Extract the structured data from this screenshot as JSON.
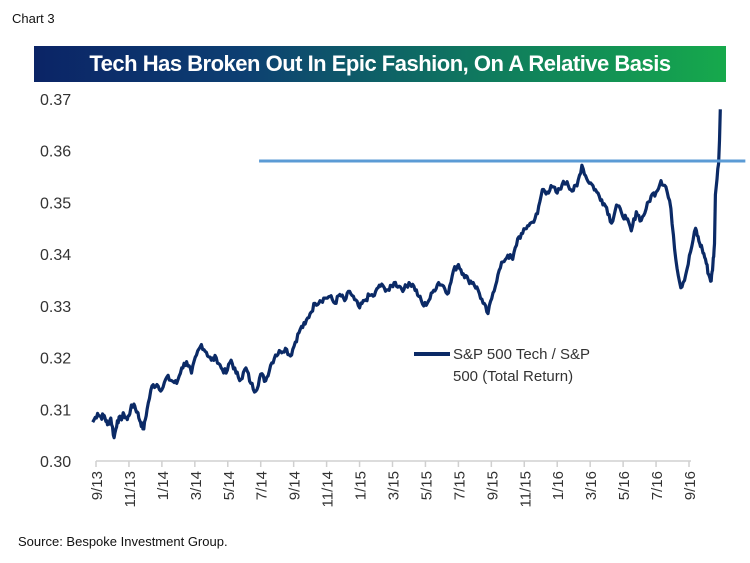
{
  "header": {
    "chart_label": "Chart 3"
  },
  "footer": {
    "source": "Source: Bespoke Investment Group."
  },
  "colors": {
    "series": "#0b2a66",
    "resistance": "#5b9bd5",
    "banner_left": "#0b2466",
    "banner_right": "#16a94c",
    "axis": "#d0d0d0"
  },
  "chart_data": {
    "type": "line",
    "title": "Tech Has Broken Out In Epic Fashion, On A Relative Basis",
    "xlabel": "",
    "ylabel": "",
    "ylim": [
      0.3,
      0.37
    ],
    "yticks": [
      "0.30",
      "0.31",
      "0.32",
      "0.33",
      "0.34",
      "0.35",
      "0.36",
      "0.37"
    ],
    "xticks": [
      "9/13",
      "11/13",
      "1/14",
      "3/14",
      "5/14",
      "7/14",
      "9/14",
      "11/14",
      "1/15",
      "3/15",
      "5/15",
      "7/15",
      "9/15",
      "11/15",
      "1/16",
      "3/16",
      "5/16",
      "7/16",
      "9/16"
    ],
    "x_unit": "months since 9/13",
    "xlim": [
      0,
      36
    ],
    "grid": false,
    "legend": {
      "position": "center-right",
      "entries": [
        "S&P 500 Tech / S&P 500 (Total Return)"
      ],
      "lines": [
        "S&P 500 Tech / S&P",
        "500 (Total Return)"
      ]
    },
    "annotations": [
      {
        "type": "horizontal-line",
        "label": "resistance",
        "value": 0.358,
        "x_start": 9.9,
        "x_end": 37.6
      }
    ],
    "series": [
      {
        "name": "S&P 500 Tech / S&P 500 (Total Return)",
        "x": [
          -0.2,
          0.1,
          0.3,
          0.5,
          0.7,
          0.9,
          1.1,
          1.3,
          1.5,
          1.7,
          1.9,
          2.1,
          2.3,
          2.5,
          2.7,
          2.9,
          3.1,
          3.4,
          3.7,
          4.0,
          4.3,
          4.6,
          4.9,
          5.2,
          5.5,
          5.8,
          6.1,
          6.4,
          6.7,
          7.0,
          7.3,
          7.6,
          7.9,
          8.2,
          8.5,
          8.8,
          9.1,
          9.4,
          9.7,
          10.0,
          10.3,
          10.6,
          10.9,
          11.2,
          11.5,
          11.8,
          12.1,
          12.4,
          12.7,
          13.0,
          13.3,
          13.6,
          13.9,
          14.2,
          14.5,
          14.8,
          15.1,
          15.4,
          15.7,
          16.0,
          16.3,
          16.6,
          16.9,
          17.2,
          17.5,
          17.8,
          18.1,
          18.4,
          18.7,
          19.0,
          19.3,
          19.6,
          19.9,
          20.2,
          20.5,
          20.8,
          21.1,
          21.4,
          21.7,
          22.0,
          22.3,
          22.6,
          22.9,
          23.2,
          23.5,
          23.8,
          24.1,
          24.4,
          24.7,
          25.0,
          25.3,
          25.6,
          25.9,
          26.2,
          26.5,
          26.8,
          27.1,
          27.4,
          27.7,
          28.0,
          28.3,
          28.6,
          28.9,
          29.2,
          29.5,
          29.8,
          30.1,
          30.4,
          30.7,
          31.0,
          31.3,
          31.6,
          31.9,
          32.2,
          32.5,
          32.8,
          33.1,
          33.4,
          33.7,
          34.0,
          34.3,
          34.6,
          34.8,
          35.0,
          35.2,
          35.4,
          35.6
        ],
        "values": [
          0.3075,
          0.3092,
          0.3085,
          0.3088,
          0.307,
          0.3083,
          0.3045,
          0.3078,
          0.3082,
          0.309,
          0.308,
          0.31,
          0.311,
          0.3095,
          0.3075,
          0.3062,
          0.31,
          0.3145,
          0.3148,
          0.3138,
          0.3162,
          0.3155,
          0.315,
          0.318,
          0.3192,
          0.317,
          0.3205,
          0.3225,
          0.321,
          0.3195,
          0.32,
          0.318,
          0.317,
          0.3195,
          0.317,
          0.3158,
          0.318,
          0.315,
          0.3135,
          0.3168,
          0.3155,
          0.3185,
          0.3205,
          0.3212,
          0.3218,
          0.3203,
          0.323,
          0.3255,
          0.3265,
          0.3285,
          0.3305,
          0.331,
          0.3315,
          0.3318,
          0.3305,
          0.3322,
          0.331,
          0.3328,
          0.3312,
          0.3296,
          0.331,
          0.332,
          0.332,
          0.334,
          0.3335,
          0.333,
          0.3345,
          0.3338,
          0.3332,
          0.3345,
          0.3338,
          0.3318,
          0.33,
          0.331,
          0.333,
          0.3345,
          0.3338,
          0.3325,
          0.3368,
          0.338,
          0.3362,
          0.335,
          0.3345,
          0.333,
          0.3305,
          0.3285,
          0.3325,
          0.336,
          0.3385,
          0.3398,
          0.339,
          0.3378,
          0.3345,
          0.334,
          0.3332,
          0.332,
          0.331,
          0.333,
          0.335,
          0.337,
          0.3395,
          0.3385,
          0.3375,
          0.3398,
          0.3408,
          0.3402,
          0.3388,
          0.336,
          0.3358,
          0.334,
          0.332,
          0.3302,
          0.3335,
          0.3392,
          0.338,
          0.337,
          0.336,
          0.334,
          0.3328,
          0.3308,
          0.337,
          0.3385,
          0.341,
          0.343,
          0.3445,
          0.3455,
          0.346
        ]
      },
      {
        "name": "S&P 500 Tech / S&P 500 (Total Return) — late period",
        "x": [
          25.6,
          25.9,
          26.2,
          26.5,
          26.8,
          27.1,
          27.4,
          27.7,
          28.0,
          28.3,
          28.6,
          28.9,
          29.2,
          29.5,
          29.8,
          30.1,
          30.4,
          30.7,
          31.0,
          31.3,
          31.6,
          31.9,
          32.2,
          32.5,
          32.8,
          33.1,
          33.4,
          33.7,
          34.0,
          34.3,
          34.6,
          34.9,
          35.2,
          35.5,
          35.8,
          36.1,
          36.4,
          36.6,
          36.8,
          37.0,
          37.2,
          37.35,
          37.45,
          37.55
        ],
        "values": [
          0.343,
          0.344,
          0.3455,
          0.3462,
          0.3478,
          0.3525,
          0.352,
          0.353,
          0.3518,
          0.3535,
          0.354,
          0.3522,
          0.3532,
          0.3572,
          0.3545,
          0.3535,
          0.352,
          0.3505,
          0.349,
          0.346,
          0.3495,
          0.348,
          0.3468,
          0.3445,
          0.3482,
          0.3465,
          0.3488,
          0.3512,
          0.352,
          0.3542,
          0.353,
          0.3488,
          0.339,
          0.3335,
          0.336,
          0.3405,
          0.345,
          0.3425,
          0.341,
          0.339,
          0.336,
          0.3348,
          0.338,
          0.342
        ]
      }
    ]
  }
}
